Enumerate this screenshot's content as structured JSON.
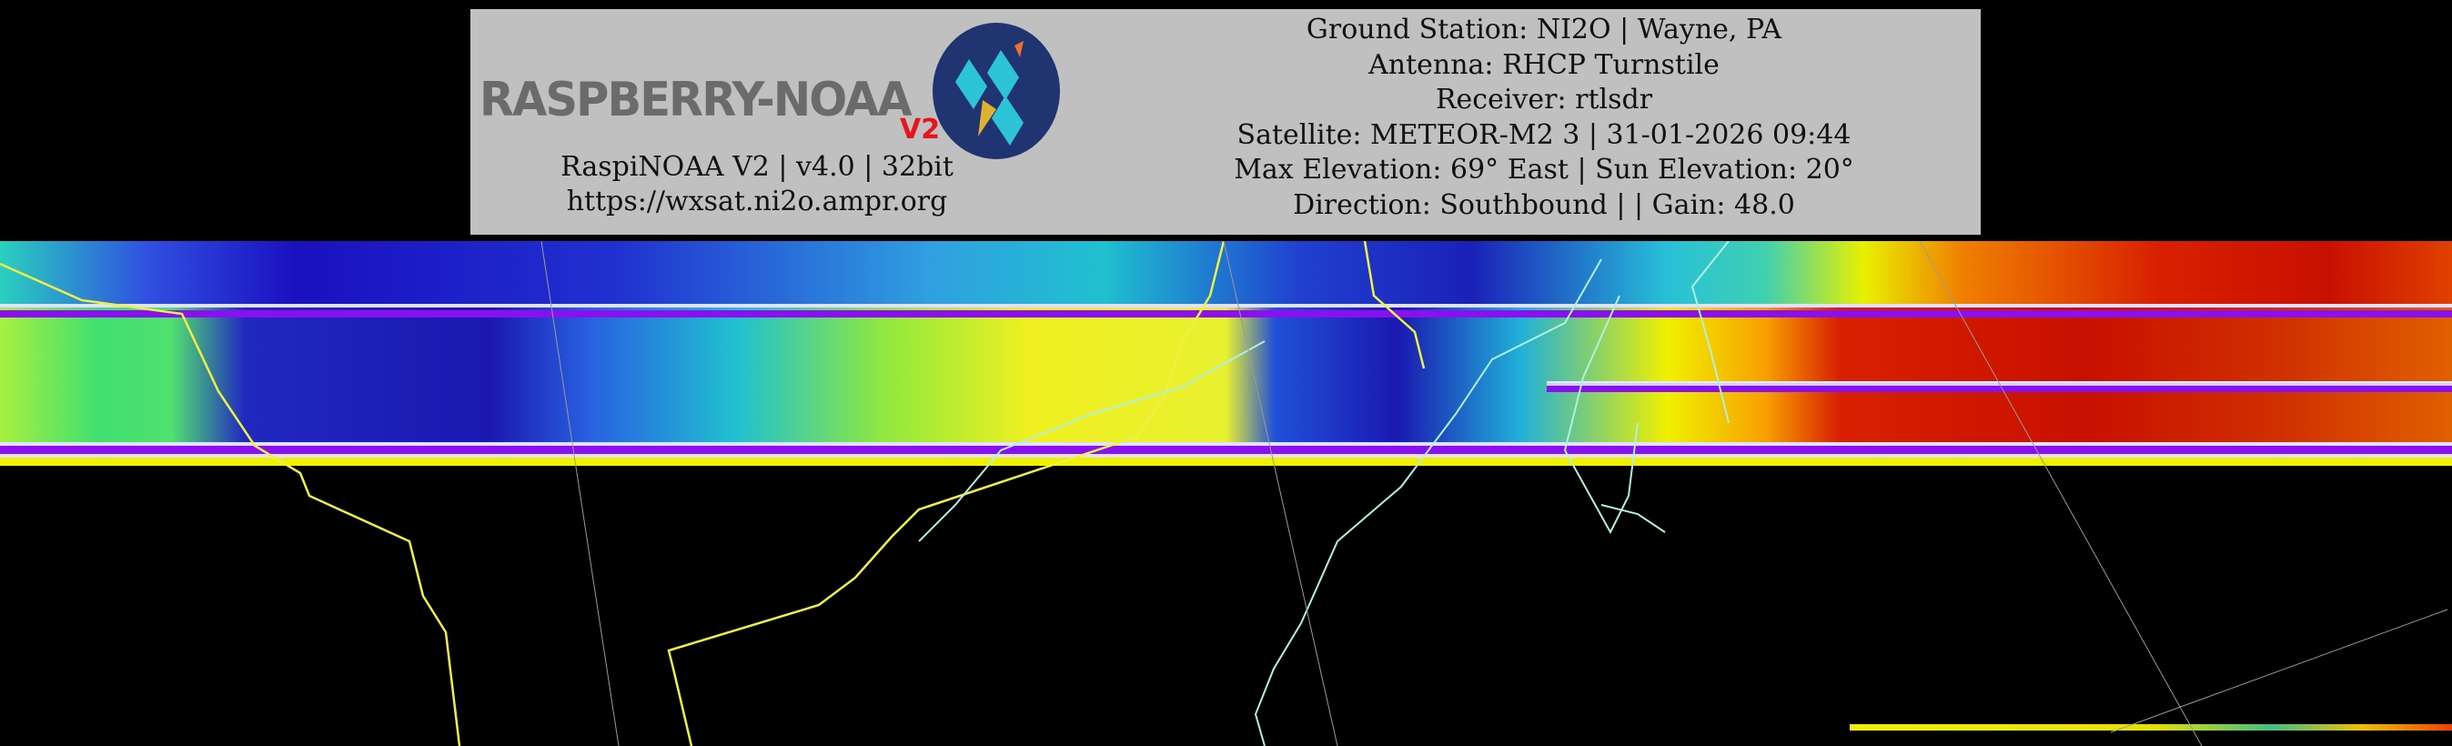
{
  "logo": {
    "text": "RASPBERRY-NOAA",
    "version_badge": "V2"
  },
  "left_info": {
    "line1": "RaspiNOAA V2 | v4.0 | 32bit",
    "line2": "https://wxsat.ni2o.ampr.org"
  },
  "right_info": {
    "ground_station": "Ground Station: NI2O | Wayne, PA",
    "antenna": "Antenna: RHCP Turnstile",
    "receiver": "Receiver: rtlsdr",
    "satellite": "Satellite: METEOR-M2 3 | 31-01-2026 09:44",
    "elevation": "Max Elevation: 69° East | Sun Elevation: 20°",
    "direction": "Direction: Southbound | | Gain: 48.0"
  },
  "colors": {
    "header_bg": "#c0c0c0",
    "border_lines": "#f0f040",
    "coastlines": "#b0f0e0",
    "background": "#000000"
  }
}
